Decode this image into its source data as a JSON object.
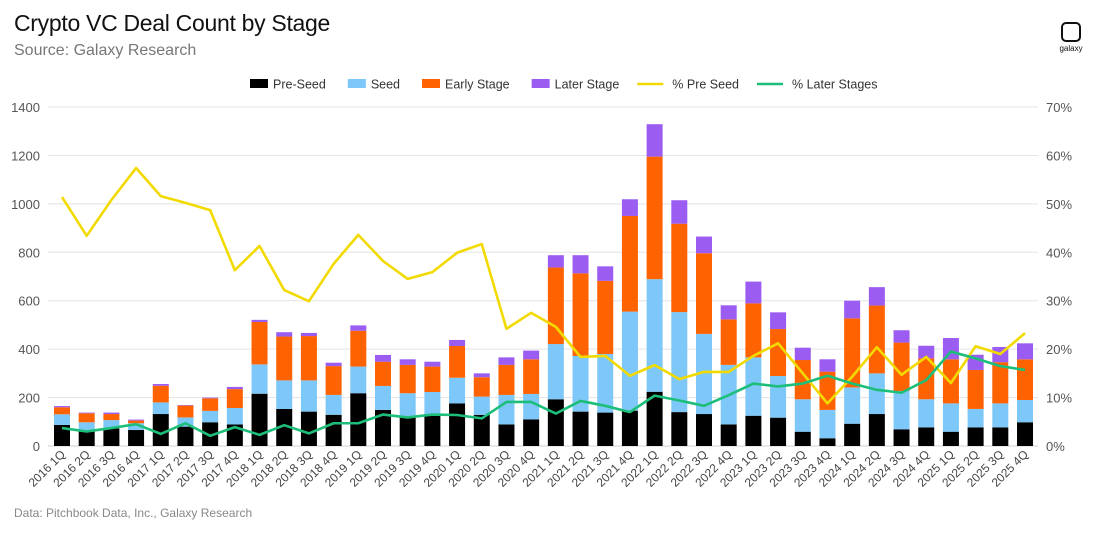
{
  "chart_data": {
    "type": "bar",
    "title": "Crypto VC Deal Count by Stage",
    "subtitle": "Source: Galaxy Research",
    "footer": "Data: Pitchbook Data, Inc., Galaxy Research",
    "logo_text": "galaxy",
    "stacked": true,
    "legend_position": "top",
    "grid": true,
    "ylim": [
      0,
      1400
    ],
    "yticks": [
      0,
      200,
      400,
      600,
      800,
      1000,
      1200,
      1400
    ],
    "y2lim": [
      0,
      70
    ],
    "y2ticks": [
      "0%",
      "10%",
      "20%",
      "30%",
      "40%",
      "50%",
      "60%",
      "70%"
    ],
    "categories": [
      "2016 1Q",
      "2016 2Q",
      "2016 3Q",
      "2016 4Q",
      "2017 1Q",
      "2017 2Q",
      "2017 3Q",
      "2017 4Q",
      "2018 1Q",
      "2018 2Q",
      "2018 3Q",
      "2018 4Q",
      "2019 1Q",
      "2019 2Q",
      "2019 3Q",
      "2019 4Q",
      "2020 1Q",
      "2020 2Q",
      "2020 3Q",
      "2020 4Q",
      "2021 1Q",
      "2021 2Q",
      "2021 3Q",
      "2021 4Q",
      "2022 1Q",
      "2022 2Q",
      "2022 3Q",
      "2022 4Q",
      "2023 1Q",
      "2023 2Q",
      "2023 3Q",
      "2023 4Q",
      "2024 1Q",
      "2024 2Q",
      "2024 3Q",
      "2024 4Q",
      "2025 1Q",
      "2025 2Q",
      "2025 3Q",
      "2025 4Q"
    ],
    "series": [
      {
        "name": "Pre-Seed",
        "kind": "bar",
        "color": "#000000",
        "values": [
          87,
          63,
          73,
          66,
          132,
          80,
          98,
          89,
          216,
          153,
          142,
          129,
          218,
          149,
          121,
          132,
          176,
          128,
          89,
          110,
          193,
          142,
          138,
          146,
          224,
          140,
          132,
          89,
          125,
          117,
          59,
          32,
          92,
          132,
          69,
          77,
          59,
          77,
          77,
          98
        ]
      },
      {
        "name": "Seed",
        "kind": "bar",
        "color": "#7DC8F8",
        "values": [
          44,
          35,
          34,
          28,
          48,
          38,
          47,
          68,
          121,
          118,
          129,
          82,
          110,
          99,
          97,
          91,
          106,
          76,
          122,
          105,
          228,
          230,
          242,
          409,
          465,
          413,
          331,
          246,
          241,
          172,
          134,
          117,
          150,
          168,
          158,
          116,
          117,
          76,
          99,
          92
        ]
      },
      {
        "name": "Early Stage",
        "kind": "bar",
        "color": "#FF6200",
        "values": [
          29,
          37,
          25,
          11,
          69,
          49,
          52,
          78,
          175,
          181,
          183,
          119,
          148,
          100,
          117,
          105,
          131,
          80,
          124,
          143,
          316,
          341,
          302,
          395,
          506,
          365,
          333,
          188,
          223,
          194,
          162,
          158,
          285,
          280,
          200,
          169,
          182,
          161,
          170,
          168
        ]
      },
      {
        "name": "Later Stage",
        "kind": "bar",
        "color": "#9B5CF2",
        "values": [
          5,
          3,
          6,
          4,
          7,
          2,
          3,
          9,
          9,
          18,
          13,
          14,
          22,
          28,
          23,
          20,
          25,
          16,
          31,
          36,
          51,
          75,
          60,
          69,
          134,
          97,
          69,
          58,
          90,
          69,
          51,
          51,
          73,
          76,
          51,
          52,
          88,
          63,
          63,
          66
        ]
      },
      {
        "name": "% Pre Seed",
        "kind": "line",
        "axis": "right",
        "color": "#F2DA00",
        "values": [
          51.4,
          43.4,
          50.8,
          57.4,
          51.6,
          50.2,
          48.7,
          36.3,
          41.3,
          32.2,
          29.9,
          37.6,
          43.6,
          38.2,
          34.5,
          35.9,
          39.9,
          41.7,
          24.2,
          27.5,
          24.6,
          18.4,
          18.6,
          14.5,
          16.7,
          13.8,
          15.3,
          15.3,
          18.6,
          21.2,
          15.0,
          8.8,
          14.3,
          20.4,
          14.7,
          18.4,
          13.0,
          20.6,
          19.0,
          23.3
        ]
      },
      {
        "name": "% Later Stages",
        "kind": "line",
        "axis": "right",
        "color": "#1DBE7A",
        "values": [
          3.7,
          3.0,
          3.7,
          4.5,
          2.5,
          4.7,
          2.1,
          3.9,
          2.3,
          4.3,
          2.6,
          4.7,
          4.7,
          6.5,
          5.9,
          6.5,
          6.4,
          5.7,
          9.1,
          9.1,
          6.7,
          9.3,
          8.3,
          7.0,
          10.4,
          9.4,
          8.3,
          10.5,
          12.9,
          12.3,
          12.9,
          14.5,
          12.9,
          11.6,
          11.0,
          13.6,
          19.5,
          18.1,
          16.5,
          15.7
        ]
      }
    ]
  }
}
